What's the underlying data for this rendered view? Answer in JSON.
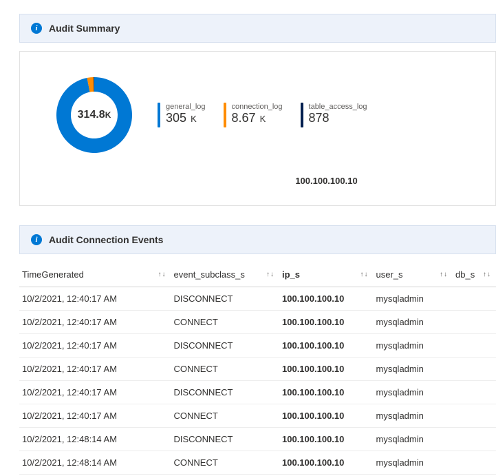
{
  "audit_summary": {
    "title": "Audit Summary",
    "donut": {
      "center_value": "314.8",
      "center_unit": "K",
      "segments": [
        {
          "label": "general_log",
          "value": 305000,
          "color": "#0078d4"
        },
        {
          "label": "connection_log",
          "value": 8670,
          "color": "#ff8c00"
        },
        {
          "label": "table_access_log",
          "value": 878,
          "color": "#002050"
        }
      ],
      "background_color": "#ffffff"
    },
    "stats": [
      {
        "label": "general_log",
        "value": "305",
        "unit": "K",
        "bar_color": "#0078d4"
      },
      {
        "label": "connection_log",
        "value": "8.67",
        "unit": "K",
        "bar_color": "#ff8c00"
      },
      {
        "label": "table_access_log",
        "value": "878",
        "unit": "",
        "bar_color": "#002050"
      }
    ],
    "ip_line": "100.100.100.10"
  },
  "audit_connection": {
    "title": "Audit Connection Events",
    "columns": [
      {
        "key": "time",
        "label": "TimeGenerated"
      },
      {
        "key": "event",
        "label": "event_subclass_s"
      },
      {
        "key": "ip",
        "label": "ip_s"
      },
      {
        "key": "user",
        "label": "user_s"
      },
      {
        "key": "db",
        "label": "db_s"
      }
    ],
    "rows": [
      {
        "time": "10/2/2021, 12:40:17 AM",
        "event": "DISCONNECT",
        "ip": "100.100.100.10",
        "user": "mysqladmin",
        "db": ""
      },
      {
        "time": "10/2/2021, 12:40:17 AM",
        "event": "CONNECT",
        "ip": "100.100.100.10",
        "user": "mysqladmin",
        "db": ""
      },
      {
        "time": "10/2/2021, 12:40:17 AM",
        "event": "DISCONNECT",
        "ip": "100.100.100.10",
        "user": "mysqladmin",
        "db": ""
      },
      {
        "time": "10/2/2021, 12:40:17 AM",
        "event": "CONNECT",
        "ip": "100.100.100.10",
        "user": "mysqladmin",
        "db": ""
      },
      {
        "time": "10/2/2021, 12:40:17 AM",
        "event": "DISCONNECT",
        "ip": "100.100.100.10",
        "user": "mysqladmin",
        "db": ""
      },
      {
        "time": "10/2/2021, 12:40:17 AM",
        "event": "CONNECT",
        "ip": "100.100.100.10",
        "user": "mysqladmin",
        "db": ""
      },
      {
        "time": "10/2/2021, 12:48:14 AM",
        "event": "DISCONNECT",
        "ip": "100.100.100.10",
        "user": "mysqladmin",
        "db": ""
      },
      {
        "time": "10/2/2021, 12:48:14 AM",
        "event": "CONNECT",
        "ip": "100.100.100.10",
        "user": "mysqladmin",
        "db": ""
      }
    ]
  },
  "icons": {
    "info_glyph": "i",
    "sort_up": "↑",
    "sort_down": "↓"
  },
  "style": {
    "header_bg": "#edf2fa",
    "header_border": "#d6e0ee",
    "info_color": "#0078d4",
    "text_color": "#323130",
    "muted_text": "#605e5c",
    "row_border": "#ededed",
    "thead_border": "#d2d2d2"
  }
}
